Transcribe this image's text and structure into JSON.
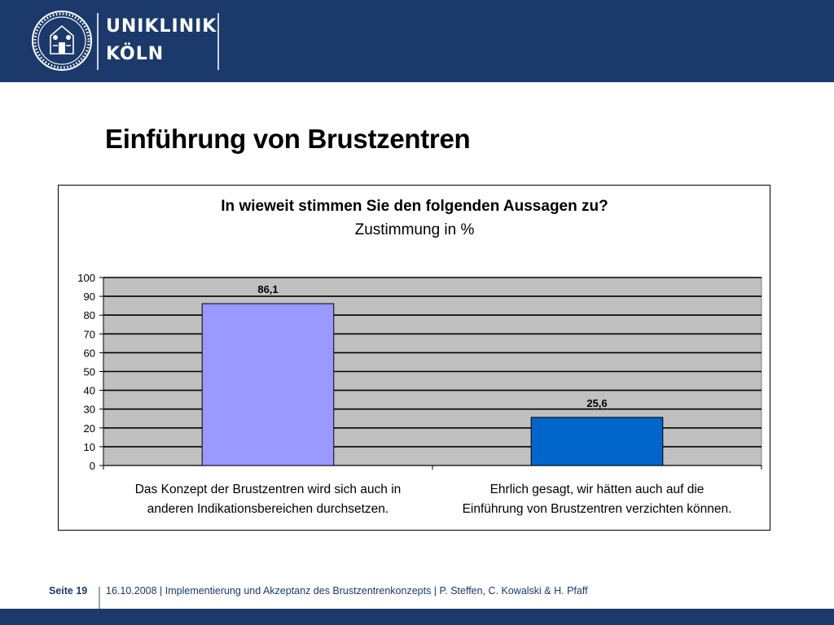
{
  "header": {
    "brand_line1": "UNIKLINIK",
    "brand_line2": "KÖLN",
    "logo_icon": "university-seal-icon",
    "background_color": "#1b3a6b"
  },
  "slide": {
    "title": "Einführung von Brustzentren"
  },
  "chart_data": {
    "type": "bar",
    "title": "In wieweit stimmen Sie den folgenden Aussagen zu?",
    "subtitle": "Zustimmung in %",
    "categories": [
      [
        "Das Konzept der Brustzentren wird sich auch in",
        "anderen Indikationsbereichen durchsetzen."
      ],
      [
        "Ehrlich gesagt, wir hätten auch auf die",
        "Einführung von Brustzentren verzichten können."
      ]
    ],
    "values": [
      86.1,
      25.6
    ],
    "value_labels": [
      "86,1",
      "25,6"
    ],
    "bar_colors": [
      "#9999ff",
      "#0066cc"
    ],
    "ylim": [
      0,
      100
    ],
    "yticks": [
      "0",
      "10",
      "20",
      "30",
      "40",
      "50",
      "60",
      "70",
      "80",
      "90",
      "100"
    ],
    "grid": true,
    "plot_background": "#c0c0c0"
  },
  "footer": {
    "page_label": "Seite 19",
    "info": "16.10.2008 | Implementierung und Akzeptanz des Brustzentrenkonzepts | P. Steffen, C. Kowalski & H. Pfaff"
  }
}
